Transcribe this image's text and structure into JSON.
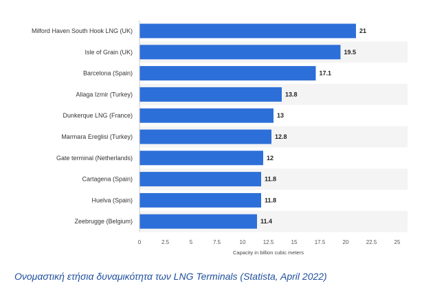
{
  "caption": "Ονομαστική ετήσια δυναμικότητα των LNG Terminals (Statista, April 2022)",
  "chart_data": {
    "type": "bar",
    "orientation": "horizontal",
    "title": "",
    "categories": [
      "Milford Haven South Hook LNG (UK)",
      "Isle of Grain (UK)",
      "Barcelona (Spain)",
      "Aliaga Izmir (Turkey)",
      "Dunkerque LNG (France)",
      "Marmara Ereglisi (Turkey)",
      "Gate terminal (Netherlands)",
      "Cartagena (Spain)",
      "Huelva (Spain)",
      "Zeebrugge (Belgium)"
    ],
    "values": [
      21,
      19.5,
      17.1,
      13.8,
      13,
      12.8,
      12,
      11.8,
      11.8,
      11.4
    ],
    "value_labels": [
      "21",
      "19.5",
      "17.1",
      "13.8",
      "13",
      "12.8",
      "12",
      "11.8",
      "11.8",
      "11.4"
    ],
    "xlabel": "Capacity in billion cubic meters",
    "ylabel": "",
    "xlim": [
      0,
      25
    ],
    "xticks": [
      0,
      2.5,
      5,
      7.5,
      10,
      12.5,
      15,
      17.5,
      20,
      22.5,
      25
    ],
    "xtick_labels": [
      "0",
      "2.5",
      "5",
      "7.5",
      "10",
      "12.5",
      "15",
      "17.5",
      "20",
      "22.5",
      "25"
    ],
    "grid": false,
    "alternating_row_bands": true,
    "colors": {
      "bar": "#2d6fd8",
      "row_band": "#f4f4f4",
      "axis_line": "#cccccc",
      "caption": "#1f4e9c"
    }
  }
}
